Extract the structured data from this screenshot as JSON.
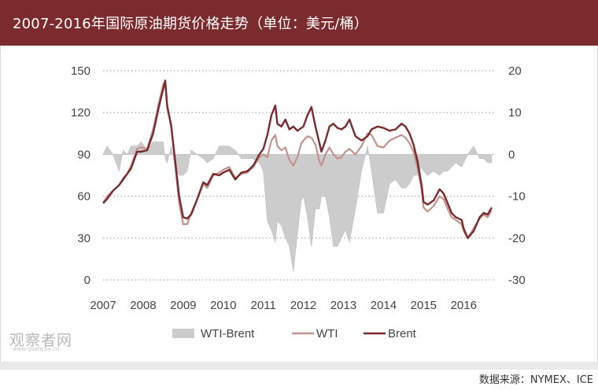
{
  "header": {
    "title": "2007-2016年国际原油期货价格走势（单位：美元/桶）"
  },
  "footer": {
    "source": "数据来源：NYMEX、ICE",
    "watermark": "观察者网",
    "watermark_sub": "www.guancha.cn"
  },
  "chart_data": {
    "type": "line",
    "title": "2007-2016年国际原油期货价格走势（单位：美元/桶）",
    "x_tick_labels": [
      "2007",
      "2008",
      "2009",
      "2010",
      "2011",
      "2012",
      "2013",
      "2014",
      "2015",
      "2016"
    ],
    "xlim": [
      2007.0,
      2016.8
    ],
    "y_left": {
      "ylim": [
        0,
        150
      ],
      "ticks": [
        "150",
        "120",
        "90",
        "60",
        "30",
        "0"
      ]
    },
    "y_right": {
      "ylim": [
        -30,
        20
      ],
      "ticks": [
        "20",
        "10",
        "0",
        "-10",
        "-20",
        "-30"
      ]
    },
    "grid": "horizontal dotted",
    "legend_position": "bottom-center",
    "colors": {
      "spread": "#cccccc",
      "wti": "#c4928e",
      "brent": "#7a2a2c"
    },
    "series": [
      {
        "name": "Brent",
        "axis": "left",
        "x": [
          2007.0,
          2007.1,
          2007.25,
          2007.4,
          2007.5,
          2007.6,
          2007.7,
          2007.85,
          2007.95,
          2008.1,
          2008.25,
          2008.4,
          2008.5,
          2008.55,
          2008.6,
          2008.7,
          2008.8,
          2008.9,
          2009.0,
          2009.1,
          2009.2,
          2009.35,
          2009.5,
          2009.6,
          2009.75,
          2009.9,
          2010.0,
          2010.15,
          2010.3,
          2010.45,
          2010.6,
          2010.75,
          2010.9,
          2011.0,
          2011.1,
          2011.2,
          2011.3,
          2011.35,
          2011.45,
          2011.55,
          2011.65,
          2011.75,
          2011.85,
          2011.95,
          2012.0,
          2012.1,
          2012.2,
          2012.3,
          2012.4,
          2012.45,
          2012.55,
          2012.65,
          2012.75,
          2012.85,
          2012.95,
          2013.05,
          2013.15,
          2013.3,
          2013.45,
          2013.6,
          2013.7,
          2013.85,
          2014.0,
          2014.15,
          2014.3,
          2014.45,
          2014.55,
          2014.65,
          2014.75,
          2014.85,
          2014.95,
          2015.0,
          2015.1,
          2015.25,
          2015.4,
          2015.5,
          2015.6,
          2015.7,
          2015.8,
          2015.95,
          2016.0,
          2016.1,
          2016.25,
          2016.4,
          2016.5,
          2016.6,
          2016.7
        ],
        "values": [
          55,
          58,
          64,
          68,
          72,
          76,
          80,
          92,
          92,
          93,
          105,
          125,
          137,
          143,
          125,
          110,
          85,
          60,
          45,
          44,
          47,
          58,
          70,
          68,
          76,
          75,
          77,
          79,
          72,
          77,
          78,
          82,
          90,
          94,
          104,
          118,
          125,
          112,
          110,
          115,
          108,
          110,
          107,
          109,
          110,
          118,
          124,
          110,
          98,
          92,
          100,
          110,
          112,
          109,
          108,
          110,
          115,
          103,
          100,
          103,
          108,
          110,
          109,
          107,
          108,
          112,
          110,
          105,
          97,
          85,
          68,
          56,
          54,
          57,
          65,
          62,
          55,
          48,
          45,
          43,
          37,
          30,
          35,
          45,
          48,
          47,
          52
        ]
      },
      {
        "name": "WTI",
        "axis": "left",
        "x": [
          2007.0,
          2007.1,
          2007.25,
          2007.4,
          2007.5,
          2007.6,
          2007.7,
          2007.85,
          2007.95,
          2008.1,
          2008.25,
          2008.4,
          2008.5,
          2008.55,
          2008.6,
          2008.7,
          2008.8,
          2008.9,
          2009.0,
          2009.1,
          2009.2,
          2009.35,
          2009.5,
          2009.6,
          2009.75,
          2009.9,
          2010.0,
          2010.15,
          2010.3,
          2010.45,
          2010.6,
          2010.75,
          2010.9,
          2011.0,
          2011.1,
          2011.2,
          2011.3,
          2011.35,
          2011.45,
          2011.55,
          2011.65,
          2011.75,
          2011.85,
          2011.95,
          2012.0,
          2012.1,
          2012.2,
          2012.3,
          2012.4,
          2012.45,
          2012.55,
          2012.65,
          2012.75,
          2012.85,
          2012.95,
          2013.05,
          2013.15,
          2013.3,
          2013.45,
          2013.6,
          2013.7,
          2013.85,
          2014.0,
          2014.15,
          2014.3,
          2014.45,
          2014.55,
          2014.65,
          2014.75,
          2014.85,
          2014.95,
          2015.0,
          2015.1,
          2015.25,
          2015.4,
          2015.5,
          2015.6,
          2015.7,
          2015.8,
          2015.95,
          2016.0,
          2016.1,
          2016.25,
          2016.4,
          2016.5,
          2016.6,
          2016.7
        ],
        "values": [
          55,
          60,
          64,
          68,
          73,
          76,
          82,
          94,
          95,
          94,
          108,
          128,
          140,
          142,
          123,
          112,
          82,
          55,
          40,
          40,
          48,
          58,
          69,
          66,
          75,
          77,
          79,
          81,
          73,
          76,
          77,
          81,
          88,
          90,
          88,
          100,
          104,
          96,
          93,
          95,
          86,
          82,
          88,
          98,
          100,
          103,
          102,
          97,
          85,
          82,
          90,
          95,
          90,
          87,
          88,
          92,
          94,
          90,
          96,
          105,
          104,
          96,
          95,
          100,
          102,
          104,
          102,
          98,
          92,
          80,
          65,
          52,
          49,
          53,
          60,
          58,
          51,
          45,
          43,
          40,
          35,
          30,
          37,
          44,
          47,
          45,
          50
        ]
      },
      {
        "name": "WTI-Brent",
        "axis": "right",
        "x": [
          2007.0,
          2007.1,
          2007.25,
          2007.4,
          2007.5,
          2007.6,
          2007.7,
          2007.85,
          2007.95,
          2008.1,
          2008.25,
          2008.4,
          2008.5,
          2008.55,
          2008.6,
          2008.7,
          2008.8,
          2008.9,
          2009.0,
          2009.1,
          2009.2,
          2009.35,
          2009.5,
          2009.6,
          2009.75,
          2009.9,
          2010.0,
          2010.15,
          2010.3,
          2010.45,
          2010.6,
          2010.75,
          2010.9,
          2011.0,
          2011.1,
          2011.2,
          2011.3,
          2011.35,
          2011.45,
          2011.55,
          2011.65,
          2011.75,
          2011.85,
          2011.95,
          2012.0,
          2012.1,
          2012.2,
          2012.3,
          2012.4,
          2012.45,
          2012.55,
          2012.65,
          2012.75,
          2012.85,
          2012.95,
          2013.05,
          2013.15,
          2013.3,
          2013.45,
          2013.6,
          2013.7,
          2013.85,
          2014.0,
          2014.15,
          2014.3,
          2014.45,
          2014.55,
          2014.65,
          2014.75,
          2014.85,
          2014.95,
          2015.0,
          2015.1,
          2015.25,
          2015.4,
          2015.5,
          2015.6,
          2015.7,
          2015.8,
          2015.95,
          2016.0,
          2016.1,
          2016.25,
          2016.4,
          2016.5,
          2016.6,
          2016.7
        ],
        "values": [
          0,
          2,
          0,
          -4,
          1,
          0,
          2,
          2,
          3,
          1,
          3,
          3,
          3,
          -1,
          -2,
          2,
          -3,
          -5,
          -5,
          -4,
          1,
          0,
          -1,
          -2,
          -1,
          2,
          2,
          2,
          1,
          -1,
          -1,
          -1,
          -2,
          -4,
          -16,
          -18,
          -21,
          -16,
          -17,
          -20,
          -22,
          -28,
          -19,
          -11,
          -10,
          -15,
          -22,
          -13,
          -13,
          -10,
          -10,
          -15,
          -22,
          -22,
          -20,
          -18,
          -21,
          -13,
          -4,
          2,
          -4,
          -14,
          -14,
          -7,
          -6,
          -8,
          -8,
          -7,
          -5,
          -5,
          -3,
          -4,
          -5,
          -4,
          -5,
          -4,
          -4,
          -3,
          -2,
          -3,
          -2,
          0,
          2,
          -1,
          -1,
          -2,
          -2
        ]
      }
    ],
    "legend": [
      {
        "name": "WTI-Brent",
        "symbol": "area"
      },
      {
        "name": "WTI",
        "symbol": "line"
      },
      {
        "name": "Brent",
        "symbol": "line"
      }
    ]
  }
}
